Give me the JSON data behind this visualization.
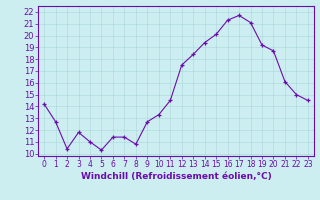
{
  "x": [
    0,
    1,
    2,
    3,
    4,
    5,
    6,
    7,
    8,
    9,
    10,
    11,
    12,
    13,
    14,
    15,
    16,
    17,
    18,
    19,
    20,
    21,
    22,
    23
  ],
  "y": [
    14.2,
    12.7,
    10.4,
    11.8,
    11.0,
    10.3,
    11.4,
    11.4,
    10.8,
    12.7,
    13.3,
    14.5,
    17.5,
    18.4,
    19.4,
    20.1,
    21.3,
    21.7,
    21.1,
    19.2,
    18.7,
    16.1,
    15.0,
    14.5
  ],
  "line_color": "#6a0dad",
  "marker": "+",
  "bg_color": "#cdeef0",
  "grid_color": "#aad8dc",
  "xlabel": "Windchill (Refroidissement éolien,°C)",
  "ylabel_values": [
    10,
    11,
    12,
    13,
    14,
    15,
    16,
    17,
    18,
    19,
    20,
    21,
    22
  ],
  "xlim": [
    -0.5,
    23.5
  ],
  "ylim": [
    9.8,
    22.5
  ],
  "xtick_labels": [
    "0",
    "1",
    "2",
    "3",
    "4",
    "5",
    "6",
    "7",
    "8",
    "9",
    "10",
    "11",
    "12",
    "13",
    "14",
    "15",
    "16",
    "17",
    "18",
    "19",
    "20",
    "21",
    "22",
    "23"
  ],
  "axis_color": "#6a0dad",
  "tick_color": "#6a0dad",
  "font_size_xlabel": 6.5,
  "font_size_ytick": 6.0,
  "font_size_xtick": 5.5
}
